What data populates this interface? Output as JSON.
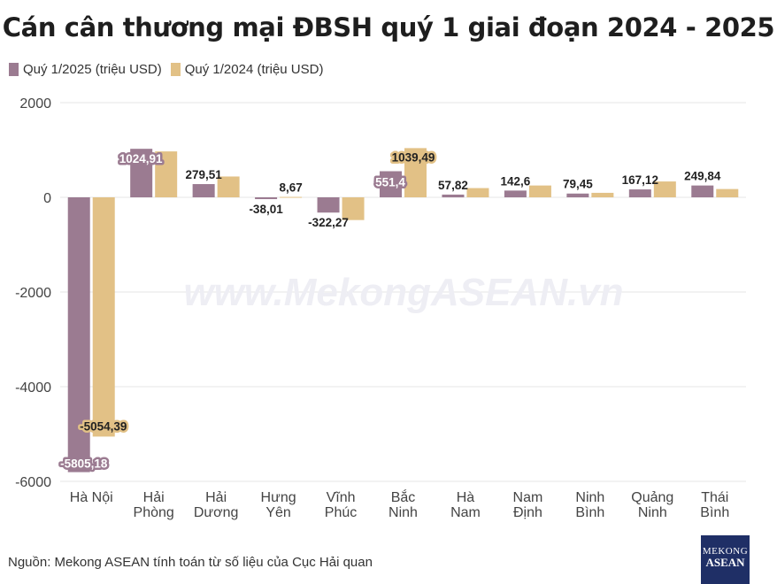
{
  "title": "Cán cân thương mại ĐBSH quý 1 giai đoạn 2024 - 2025",
  "legend": {
    "s2025": "Quý 1/2025 (triệu USD)",
    "s2024": "Quý 1/2024 (triệu USD)"
  },
  "watermark": "www.MekongASEAN.vn",
  "source": "Nguồn: Mekong ASEAN tính toán từ số liệu của Cục Hải quan",
  "logo": {
    "line1": "MEKONG",
    "line2": "ASEAN"
  },
  "colors": {
    "s2025": "#9b7b91",
    "s2024": "#e2c186",
    "grid": "#e6e6e6",
    "watermark": "#eeeef4"
  },
  "chart_data": {
    "type": "bar",
    "title": "Cán cân thương mại ĐBSH quý 1 giai đoạn 2024 - 2025",
    "categories": [
      [
        "Hà Nội"
      ],
      [
        "Hải",
        "Phòng"
      ],
      [
        "Hải",
        "Dương"
      ],
      [
        "Hưng",
        "Yên"
      ],
      [
        "Vĩnh",
        "Phúc"
      ],
      [
        "Bắc",
        "Ninh"
      ],
      [
        "Hà",
        "Nam"
      ],
      [
        "Nam",
        "Định"
      ],
      [
        "Ninh",
        "Bình"
      ],
      [
        "Quảng",
        "Ninh"
      ],
      [
        "Thái",
        "Bình"
      ]
    ],
    "series": [
      {
        "name": "Quý 1/2025 (triệu USD)",
        "values": [
          -5805.18,
          1024.91,
          279.51,
          -38.01,
          -322.27,
          551.4,
          57.82,
          142.6,
          79.45,
          167.12,
          249.84
        ],
        "labels": [
          "-5805,18",
          "1024,91",
          "279,51",
          "-38,01",
          "-322,27",
          "551,4",
          "57,82",
          "142,6",
          "79,45",
          "167,12",
          "249,84"
        ]
      },
      {
        "name": "Quý 1/2024 (triệu USD)",
        "values": [
          -5054.39,
          970,
          440,
          8.67,
          -480,
          1039.49,
          195,
          250,
          95,
          335,
          175
        ],
        "labels": [
          "-5054,39",
          "",
          "",
          "8,67",
          "",
          "1039,49",
          "",
          "",
          "",
          "",
          ""
        ]
      }
    ],
    "yticks": [
      2000,
      0,
      -2000,
      -4000,
      -6000
    ],
    "ytick_labels": [
      "2000",
      "0",
      "-2000",
      "-4000",
      "-6000"
    ],
    "ylim": [
      -6000,
      2000
    ],
    "grid": true,
    "legend_position": "top-left"
  }
}
